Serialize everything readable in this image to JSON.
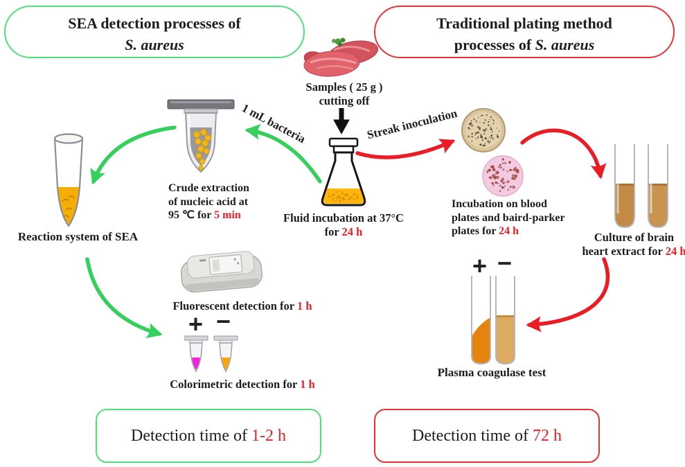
{
  "palette": {
    "green_accent": "#4fe07e",
    "green_arrow": "#35d05c",
    "red_accent": "#e8303a",
    "red_arrow": "#ea1c24",
    "highlight_red": "#ed1c24",
    "flask_liquid": "#ffb60d",
    "tube_liquid_yellow": "#f6ad06",
    "colorimetric_positive": "#f122da",
    "colorimetric_negative": "#f6a60b",
    "plate_baird_parker": "#d9c49c",
    "plate_blood": "#f3cbe0",
    "broth_brown": "#c28a45",
    "plasma_clot": "#e5830e"
  },
  "title_left": {
    "line1": "SEA detection processes of",
    "line2": "S. aureus"
  },
  "title_right": {
    "line1": "Traditional plating method",
    "line2_prefix": "processes of ",
    "line2_italic": "S. aureus"
  },
  "samples": {
    "line1": "Samples ( 25 g )",
    "line2": "cutting off"
  },
  "branch_labels": {
    "left": "1 mL bacteria",
    "right": "Streak inoculation"
  },
  "fluid": {
    "line1": "Fluid incubation at 37°C",
    "line2_prefix": "for ",
    "time": "24 h"
  },
  "crude": {
    "line1": "Crude extraction",
    "line2": "of nucleic acid at",
    "line3_prefix": "95 ℃  for ",
    "time": "5 min"
  },
  "reaction": {
    "label": "Reaction system of SEA"
  },
  "fluorescent": {
    "prefix": "Fluorescent detection for ",
    "time": "1 h"
  },
  "colorimetric": {
    "prefix": "Colorimetric detection for ",
    "time": "1 h",
    "plus": "+",
    "minus": "−"
  },
  "incubation": {
    "line1": "Incubation on blood",
    "line2": "plates and baird-parker",
    "line3_prefix": "plates for ",
    "time": "24 h"
  },
  "culture": {
    "line1": "Culture of brain",
    "line2_prefix": "heart extract for ",
    "time": "24 h"
  },
  "plasma": {
    "label": "Plasma coagulase test",
    "plus": "+",
    "minus": "−"
  },
  "summary_left": {
    "prefix": "Detection time of ",
    "time": "1-2 h"
  },
  "summary_right": {
    "prefix": "Detection time of ",
    "time": "72 h"
  }
}
